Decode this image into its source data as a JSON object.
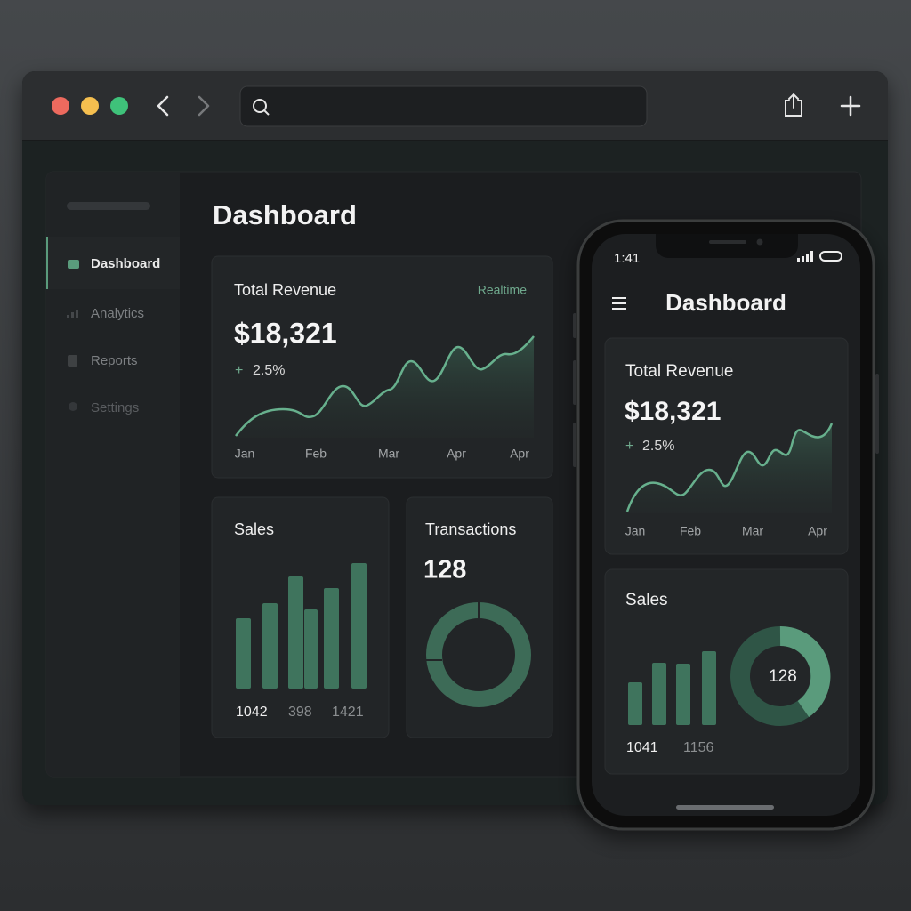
{
  "browser": {
    "nav": [
      "Dashboard",
      "Analytics",
      "Reports",
      "Settings"
    ],
    "title": "Dashboard",
    "revenue": {
      "title": "Total Revenue",
      "badge": "Realtime",
      "amount": "$18,321",
      "change_sign": "+",
      "change": "2.5%",
      "months": [
        "Jan",
        "Feb",
        "Mar",
        "Apr",
        "Apr"
      ]
    },
    "sales": {
      "title": "Sales",
      "labels": [
        "1042",
        "398",
        "1421"
      ]
    },
    "transactions": {
      "title": "Transactions",
      "count": "128"
    }
  },
  "phone": {
    "time": "1:41",
    "title": "Dashboard",
    "revenue": {
      "title": "Total Revenue",
      "amount": "$18,321",
      "change_sign": "+",
      "change": "2.5%",
      "months": [
        "Jan",
        "Feb",
        "Mar",
        "Apr"
      ]
    },
    "sales": {
      "title": "Sales",
      "count": "128",
      "labels": [
        "1041",
        "1156"
      ]
    }
  }
}
